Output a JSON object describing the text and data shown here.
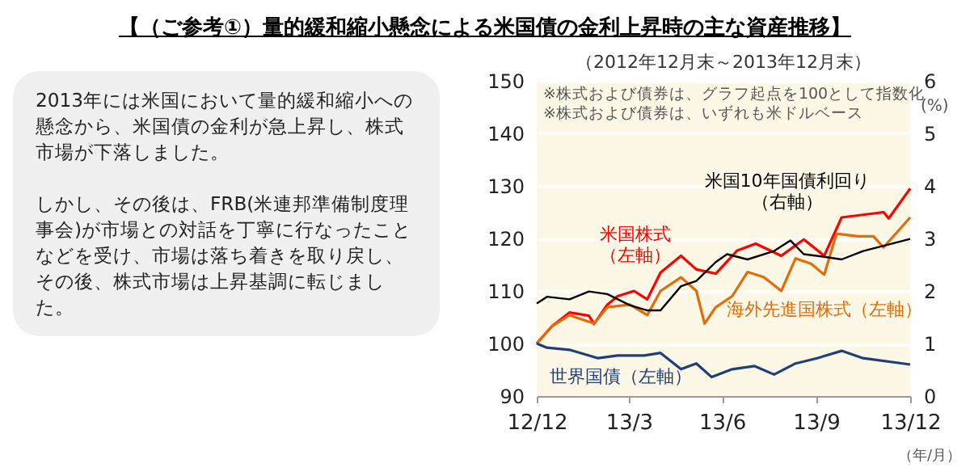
{
  "chart_data": {
    "type": "line",
    "title": "【（ご参考①）量的緩和縮小懸念による米国債の金利上昇時の主な資産推移】",
    "subtitle": "（2012年12月末～2013年12月末）",
    "xlabel": "（年/月）",
    "y2label": "(%)",
    "xlim": [
      "2012-12-31",
      "2013-12-31"
    ],
    "xticks": [
      {
        "value": "2012-12-31",
        "label": "12/12"
      },
      {
        "value": "2013-03-31",
        "label": "13/3"
      },
      {
        "value": "2013-06-30",
        "label": "13/6"
      },
      {
        "value": "2013-09-30",
        "label": "13/9"
      },
      {
        "value": "2013-12-31",
        "label": "13/12"
      }
    ],
    "ylim": [
      90,
      150
    ],
    "yticks": [
      90,
      100,
      110,
      120,
      130,
      140,
      150
    ],
    "y2lim": [
      0,
      6
    ],
    "y2ticks": [
      0,
      1,
      2,
      3,
      4,
      5,
      6
    ],
    "grid": "y",
    "series": [
      {
        "name": "米国株式（左軸）",
        "color": "#ff0000",
        "x": [
          "2012-12-31",
          "2013-01-15",
          "2013-02-01",
          "2013-02-20",
          "2013-02-25",
          "2013-03-10",
          "2013-03-20",
          "2013-04-05",
          "2013-04-18",
          "2013-05-01",
          "2013-05-21",
          "2013-06-05",
          "2013-06-24",
          "2013-07-15",
          "2013-08-02",
          "2013-08-27",
          "2013-09-18",
          "2013-10-08",
          "2013-10-25",
          "2013-11-15",
          "2013-12-05",
          "2013-12-10",
          "2013-12-31"
        ],
        "values": [
          100,
          103.3,
          105.9,
          105.3,
          103.7,
          107.4,
          109,
          110,
          108.4,
          113.5,
          116.7,
          114.1,
          113.3,
          117.7,
          119,
          116.7,
          119.8,
          116.7,
          124,
          124.5,
          125,
          123.8,
          129.5
        ]
      },
      {
        "name": "海外先進国株式（左軸）",
        "color": "#e36c09",
        "x": [
          "2012-12-31",
          "2013-01-15",
          "2013-02-01",
          "2013-02-25",
          "2013-03-10",
          "2013-04-01",
          "2013-04-18",
          "2013-05-01",
          "2013-05-21",
          "2013-06-05",
          "2013-06-13",
          "2013-06-24",
          "2013-07-10",
          "2013-07-25",
          "2013-08-10",
          "2013-08-27",
          "2013-09-10",
          "2013-09-25",
          "2013-10-08",
          "2013-10-20",
          "2013-11-10",
          "2013-11-25",
          "2013-12-05",
          "2013-12-31"
        ],
        "values": [
          100,
          103.3,
          105.4,
          103.8,
          106.9,
          107.4,
          105.4,
          110,
          112.6,
          110,
          103.8,
          106.9,
          109,
          113.6,
          112.6,
          110,
          116.2,
          115.2,
          113.1,
          120.9,
          120.4,
          120.4,
          118.3,
          124
        ]
      },
      {
        "name": "世界国債（左軸）",
        "color": "#1f3f7a",
        "x": [
          "2012-12-31",
          "2013-01-10",
          "2013-02-01",
          "2013-03-01",
          "2013-03-20",
          "2013-04-15",
          "2013-05-01",
          "2013-05-21",
          "2013-06-05",
          "2013-06-20",
          "2013-07-10",
          "2013-08-01",
          "2013-08-20",
          "2013-09-10",
          "2013-10-01",
          "2013-10-25",
          "2013-11-15",
          "2013-12-31"
        ],
        "values": [
          100,
          99.2,
          98.8,
          97.2,
          97.7,
          97.7,
          98.2,
          95.1,
          96.2,
          93.6,
          95.1,
          95.7,
          94.1,
          96.2,
          97.2,
          98.6,
          97.2,
          96
        ]
      },
      {
        "name": "米国10年国債利回り（右軸）",
        "color": "#000000",
        "axis": "y2",
        "x": [
          "2012-12-31",
          "2013-01-10",
          "2013-02-01",
          "2013-02-20",
          "2013-03-10",
          "2013-04-01",
          "2013-04-18",
          "2013-05-01",
          "2013-05-21",
          "2013-06-05",
          "2013-06-24",
          "2013-07-05",
          "2013-07-25",
          "2013-08-20",
          "2013-09-05",
          "2013-09-18",
          "2013-10-08",
          "2013-10-25",
          "2013-11-15",
          "2013-12-05",
          "2013-12-31"
        ],
        "values": [
          1.76,
          1.89,
          1.84,
          1.99,
          1.94,
          1.73,
          1.63,
          1.63,
          2.09,
          2.19,
          2.55,
          2.7,
          2.6,
          2.76,
          2.96,
          2.7,
          2.65,
          2.6,
          2.76,
          2.86,
          2.99
        ]
      }
    ],
    "annotations": [
      "2013年には米国において量的緩和縮小への懸念から、米国債の金利が急上昇し、株式市場が下落しました。",
      "しかし、その後は、FRB(米連邦準備制度理事会)が市場との対話を丁寧に行なったことなどを受け、市場は落ち着きを取り戻し、その後、株式市場は上昇基調に転じました。",
      "※株式および債券は、グラフ起点を100として指数化",
      "※株式および債券は、いずれも米ドルベース"
    ]
  }
}
